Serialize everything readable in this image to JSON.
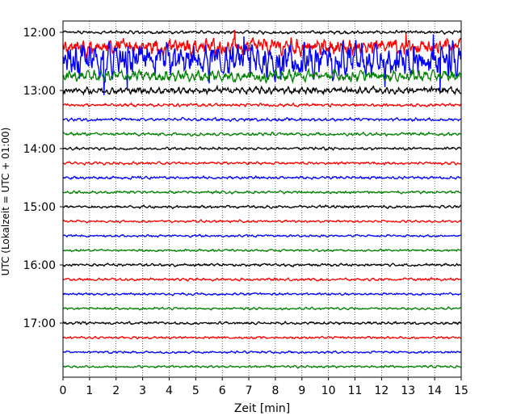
{
  "chart_data": {
    "type": "line",
    "title": "",
    "xlabel": "Zeit  [min]",
    "ylabel": "UTC (Lokalzeit = UTC + 01:00)",
    "xlim": [
      0,
      15
    ],
    "x_ticks": [
      0,
      1,
      2,
      3,
      4,
      5,
      6,
      7,
      8,
      9,
      10,
      11,
      12,
      13,
      14,
      15
    ],
    "x_tick_labels": [
      "0",
      "1",
      "2",
      "3",
      "4",
      "5",
      "6",
      "7",
      "8",
      "9",
      "10",
      "11",
      "12",
      "13",
      "14",
      "15"
    ],
    "y_tick_labels": [
      "12:00",
      "13:00",
      "14:00",
      "15:00",
      "16:00",
      "17:00"
    ],
    "y_tick_times": [
      "12:00",
      "13:00",
      "14:00",
      "15:00",
      "16:00",
      "17:00"
    ],
    "grid": "vertical dotted",
    "trace_interval_min": 15,
    "traces": [
      {
        "start": "12:00",
        "color": "#000000",
        "amplitude": 0.08
      },
      {
        "start": "12:15",
        "color": "#ff0000",
        "amplitude": 0.45
      },
      {
        "start": "12:30",
        "color": "#0000ff",
        "amplitude": 0.9
      },
      {
        "start": "12:45",
        "color": "#008000",
        "amplitude": 0.3
      },
      {
        "start": "13:00",
        "color": "#000000",
        "amplitude": 0.18
      },
      {
        "start": "13:15",
        "color": "#ff0000",
        "amplitude": 0.08
      },
      {
        "start": "13:30",
        "color": "#0000ff",
        "amplitude": 0.08
      },
      {
        "start": "13:45",
        "color": "#008000",
        "amplitude": 0.08
      },
      {
        "start": "14:00",
        "color": "#000000",
        "amplitude": 0.07
      },
      {
        "start": "14:15",
        "color": "#ff0000",
        "amplitude": 0.07
      },
      {
        "start": "14:30",
        "color": "#0000ff",
        "amplitude": 0.07
      },
      {
        "start": "14:45",
        "color": "#008000",
        "amplitude": 0.07
      },
      {
        "start": "15:00",
        "color": "#000000",
        "amplitude": 0.07
      },
      {
        "start": "15:15",
        "color": "#ff0000",
        "amplitude": 0.06
      },
      {
        "start": "15:30",
        "color": "#0000ff",
        "amplitude": 0.06
      },
      {
        "start": "15:45",
        "color": "#008000",
        "amplitude": 0.06
      },
      {
        "start": "16:00",
        "color": "#000000",
        "amplitude": 0.07
      },
      {
        "start": "16:15",
        "color": "#ff0000",
        "amplitude": 0.07
      },
      {
        "start": "16:30",
        "color": "#0000ff",
        "amplitude": 0.06
      },
      {
        "start": "16:45",
        "color": "#008000",
        "amplitude": 0.06
      },
      {
        "start": "17:00",
        "color": "#000000",
        "amplitude": 0.07
      },
      {
        "start": "17:15",
        "color": "#ff0000",
        "amplitude": 0.06
      },
      {
        "start": "17:30",
        "color": "#0000ff",
        "amplitude": 0.06
      },
      {
        "start": "17:45",
        "color": "#008000",
        "amplitude": 0.06
      }
    ]
  }
}
